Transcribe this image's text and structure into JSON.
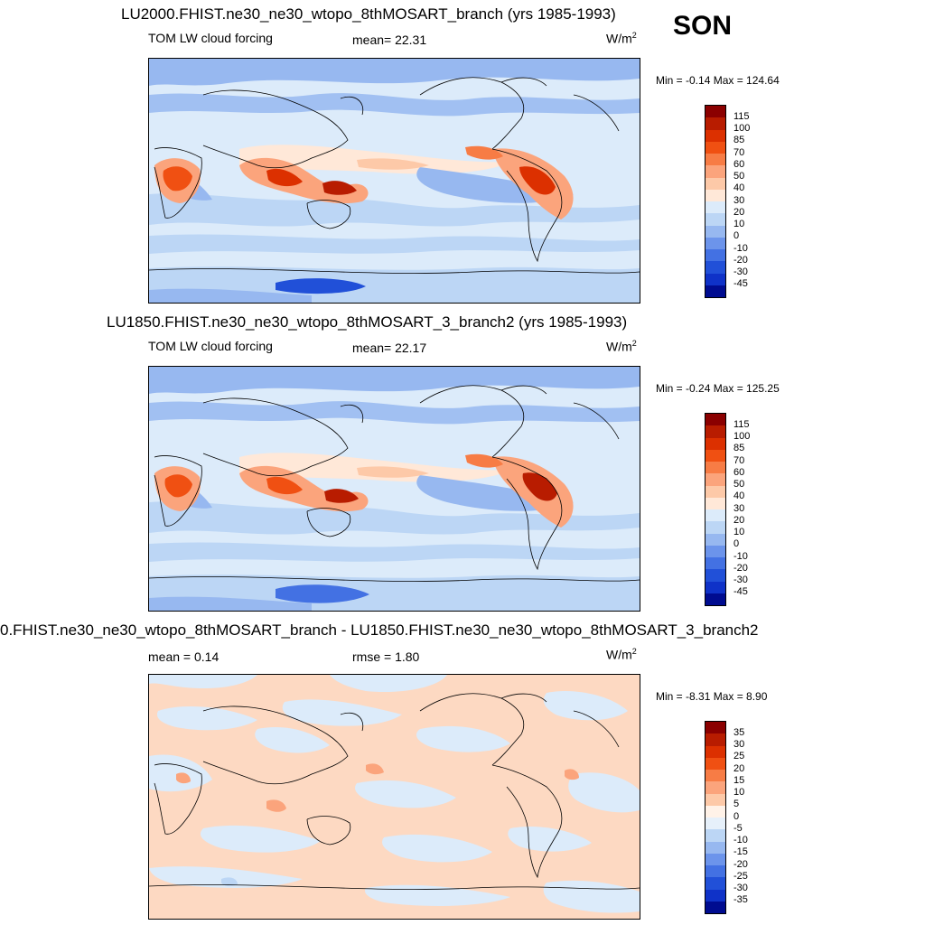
{
  "season": "SON",
  "units_base": "W/m",
  "units_exp": "2",
  "panels": [
    {
      "title": "LU2000.FHIST.ne30_ne30_wtopo_8thMOSART_branch (yrs 1985-1993)",
      "left_label": "TOM LW cloud forcing",
      "center_label": "mean=  22.31",
      "minmax": "Min =  -0.14 Max = 124.64",
      "levels": [
        "115",
        "100",
        "85",
        "70",
        "60",
        "50",
        "40",
        "30",
        "20",
        "10",
        "0",
        "-10",
        "-20",
        "-30",
        "-45"
      ],
      "colors": [
        "#8b0000",
        "#b81c00",
        "#dc3000",
        "#f05012",
        "#f77c45",
        "#fba47c",
        "#fdc9a8",
        "#ffe8d8",
        "#dcebfa",
        "#bcd6f5",
        "#97b8f0",
        "#6c94eb",
        "#4371e3",
        "#2150d8",
        "#0f32c8",
        "#000c90"
      ]
    },
    {
      "title": "LU1850.FHIST.ne30_ne30_wtopo_8thMOSART_3_branch2 (yrs 1985-1993)",
      "left_label": "TOM LW cloud forcing",
      "center_label": "mean=  22.17",
      "minmax": "Min =  -0.24 Max = 125.25",
      "levels": [
        "115",
        "100",
        "85",
        "70",
        "60",
        "50",
        "40",
        "30",
        "20",
        "10",
        "0",
        "-10",
        "-20",
        "-30",
        "-45"
      ],
      "colors": [
        "#8b0000",
        "#b81c00",
        "#dc3000",
        "#f05012",
        "#f77c45",
        "#fba47c",
        "#fdc9a8",
        "#ffe8d8",
        "#dcebfa",
        "#bcd6f5",
        "#97b8f0",
        "#6c94eb",
        "#4371e3",
        "#2150d8",
        "#0f32c8",
        "#000c90"
      ]
    },
    {
      "title": "0.FHIST.ne30_ne30_wtopo_8thMOSART_branch - LU1850.FHIST.ne30_ne30_wtopo_8thMOSART_3_branch2",
      "left_label": "mean =   0.14",
      "center_label": "rmse =   1.80",
      "minmax": "Min =  -8.31 Max =   8.90",
      "levels": [
        "35",
        "30",
        "25",
        "20",
        "15",
        "10",
        "5",
        "0",
        "-5",
        "-10",
        "-15",
        "-20",
        "-25",
        "-30",
        "-35"
      ],
      "colors": [
        "#8b0000",
        "#b81c00",
        "#dc3000",
        "#f05012",
        "#f77c45",
        "#fba47c",
        "#fdc9a8",
        "#fff2e8",
        "#e6f0fa",
        "#bcd6f5",
        "#97b8f0",
        "#6c94eb",
        "#4371e3",
        "#2150d8",
        "#0f32c8",
        "#000c90"
      ]
    }
  ]
}
